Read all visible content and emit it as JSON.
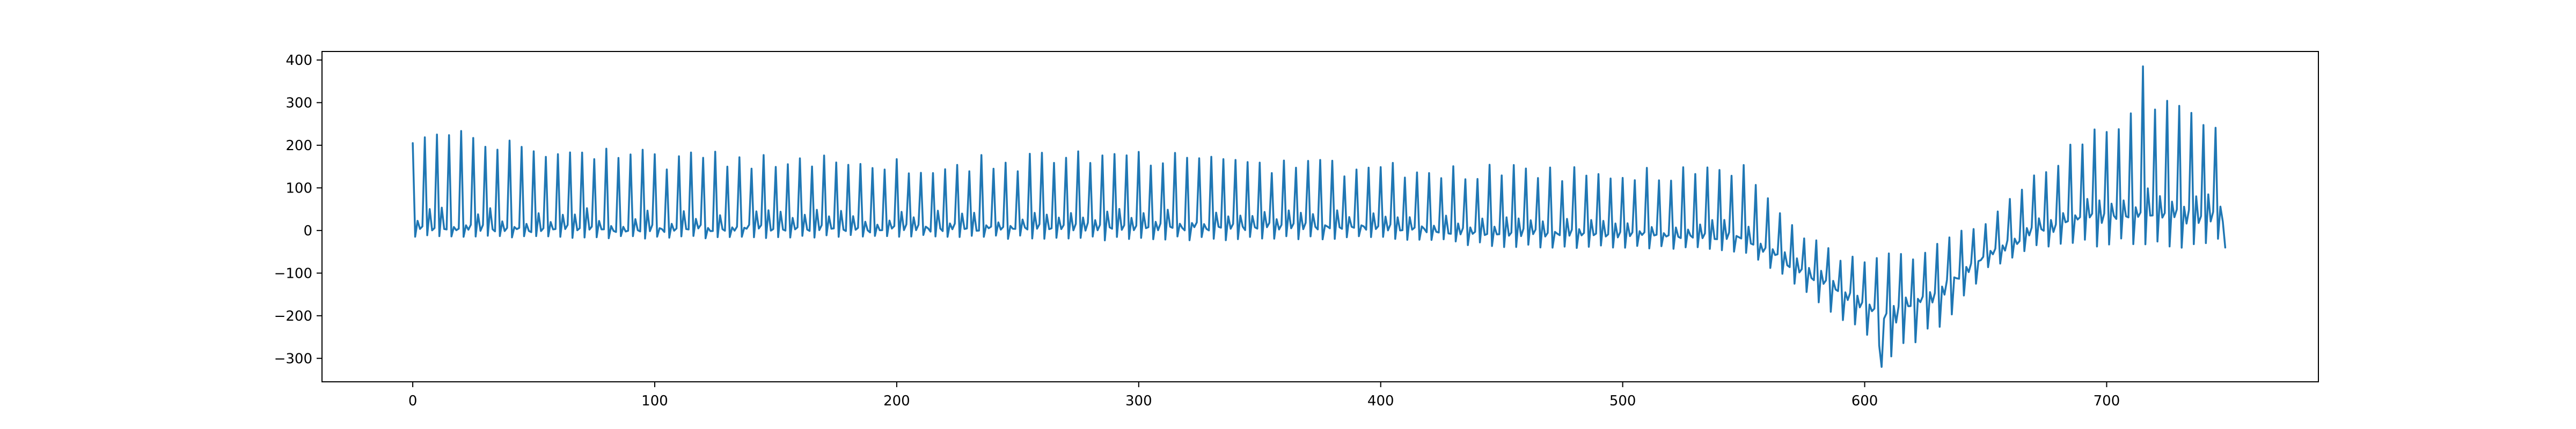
{
  "chart_data": {
    "type": "line",
    "title": "",
    "xlabel": "",
    "ylabel": "",
    "xlim": [
      -37.5,
      787.5
    ],
    "ylim": [
      -355,
      420
    ],
    "x_ticks": [
      0,
      100,
      200,
      300,
      400,
      500,
      600,
      700
    ],
    "y_ticks": [
      -300,
      -200,
      -100,
      0,
      100,
      200,
      300,
      400
    ],
    "x_tick_labels": [
      "0",
      "100",
      "200",
      "300",
      "400",
      "500",
      "600",
      "700"
    ],
    "y_tick_labels": [
      "−300",
      "−200",
      "−100",
      "0",
      "100",
      "200",
      "300",
      "400"
    ],
    "grid": false,
    "n_points": 750,
    "series": [
      {
        "color": "#1f77b4",
        "x_start": 0,
        "x_step": 1,
        "period": 5,
        "first_value": 205,
        "last_value": -40,
        "y_min": -320,
        "y_max": 385,
        "baseline_anchors": [
          [
            0,
            5
          ],
          [
            100,
            5
          ],
          [
            200,
            5
          ],
          [
            300,
            10
          ],
          [
            400,
            10
          ],
          [
            450,
            -5
          ],
          [
            500,
            -5
          ],
          [
            550,
            -15
          ],
          [
            570,
            -80
          ],
          [
            590,
            -140
          ],
          [
            610,
            -200
          ],
          [
            630,
            -140
          ],
          [
            650,
            -60
          ],
          [
            670,
            0
          ],
          [
            690,
            30
          ],
          [
            720,
            40
          ],
          [
            749,
            40
          ]
        ],
        "peak_anchors": [
          [
            0,
            250
          ],
          [
            100,
            190
          ],
          [
            200,
            175
          ],
          [
            300,
            190
          ],
          [
            400,
            160
          ],
          [
            450,
            160
          ],
          [
            500,
            150
          ],
          [
            550,
            160
          ],
          [
            570,
            20
          ],
          [
            590,
            -60
          ],
          [
            610,
            -50
          ],
          [
            630,
            -20
          ],
          [
            650,
            20
          ],
          [
            670,
            150
          ],
          [
            690,
            230
          ],
          [
            710,
            320
          ],
          [
            730,
            310
          ],
          [
            749,
            250
          ]
        ],
        "trough_anchors": [
          [
            0,
            -15
          ],
          [
            100,
            -20
          ],
          [
            200,
            -15
          ],
          [
            300,
            -25
          ],
          [
            400,
            -20
          ],
          [
            450,
            -40
          ],
          [
            500,
            -45
          ],
          [
            550,
            -50
          ],
          [
            570,
            -120
          ],
          [
            590,
            -220
          ],
          [
            610,
            -300
          ],
          [
            630,
            -240
          ],
          [
            650,
            -100
          ],
          [
            670,
            -40
          ],
          [
            690,
            -40
          ],
          [
            720,
            -40
          ],
          [
            749,
            -45
          ]
        ]
      }
    ]
  }
}
